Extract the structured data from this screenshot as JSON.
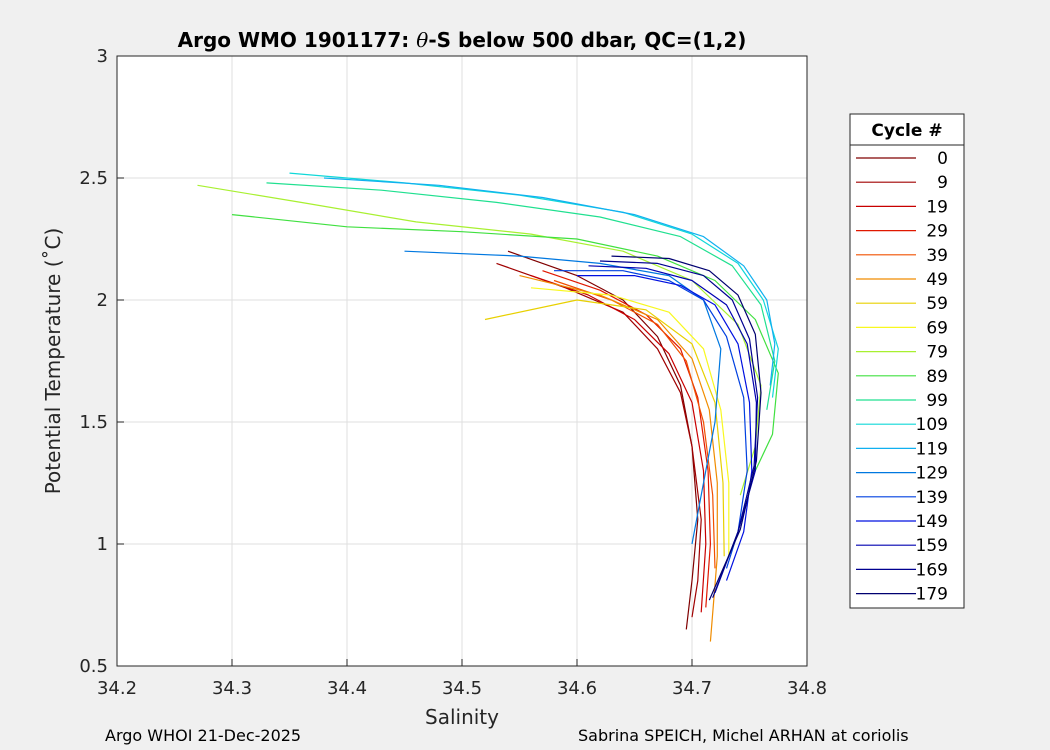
{
  "chart_data": {
    "type": "line",
    "title_prefix": "Argo WMO 1901177: ",
    "title_theta": "θ",
    "title_suffix": "-S below 500 dbar,  QC=(1,2)",
    "xlabel": "Salinity",
    "ylabel": "Potential Temperature (˚C)",
    "xlim": [
      34.2,
      34.8
    ],
    "ylim": [
      0.5,
      3
    ],
    "xticks": [
      34.2,
      34.3,
      34.4,
      34.5,
      34.6,
      34.7,
      34.8
    ],
    "xtick_labels": [
      "34.2",
      "34.3",
      "34.4",
      "34.5",
      "34.6",
      "34.7",
      "34.8"
    ],
    "yticks": [
      0.5,
      1,
      1.5,
      2,
      2.5,
      3
    ],
    "ytick_labels": [
      "0.5",
      "1",
      "1.5",
      "2",
      "2.5",
      "3"
    ],
    "grid": true,
    "legend_title": "Cycle #",
    "legend_placement": "right, outside",
    "legend": [
      {
        "label": "0",
        "color": "#800000"
      },
      {
        "label": "9",
        "color": "#a00000"
      },
      {
        "label": "19",
        "color": "#c80000"
      },
      {
        "label": "29",
        "color": "#e01800"
      },
      {
        "label": "39",
        "color": "#f05000"
      },
      {
        "label": "49",
        "color": "#f08c00"
      },
      {
        "label": "59",
        "color": "#e8d000"
      },
      {
        "label": "69",
        "color": "#f8f820"
      },
      {
        "label": "79",
        "color": "#a8f030"
      },
      {
        "label": "89",
        "color": "#40e040"
      },
      {
        "label": "99",
        "color": "#20e090"
      },
      {
        "label": "109",
        "color": "#10d8d8"
      },
      {
        "label": "119",
        "color": "#10b0f0"
      },
      {
        "label": "129",
        "color": "#0078e0"
      },
      {
        "label": "139",
        "color": "#0040e0"
      },
      {
        "label": "149",
        "color": "#0010e0"
      },
      {
        "label": "159",
        "color": "#0000b0"
      },
      {
        "label": "169",
        "color": "#000090"
      },
      {
        "label": "179",
        "color": "#000070"
      }
    ],
    "series": [
      {
        "name": "0",
        "s": [
          34.54,
          34.6,
          34.64,
          34.67,
          34.69,
          34.7,
          34.705,
          34.7,
          34.695
        ],
        "t": [
          2.2,
          2.1,
          2.0,
          1.85,
          1.65,
          1.4,
          1.1,
          0.85,
          0.65
        ]
      },
      {
        "name": "9",
        "s": [
          34.53,
          34.59,
          34.64,
          34.67,
          34.69,
          34.7,
          34.708,
          34.705,
          34.7
        ],
        "t": [
          2.15,
          2.05,
          1.95,
          1.8,
          1.62,
          1.4,
          1.1,
          0.85,
          0.7
        ]
      },
      {
        "name": "19",
        "s": [
          34.56,
          34.61,
          34.65,
          34.68,
          34.7,
          34.71,
          34.712,
          34.708
        ],
        "t": [
          2.1,
          2.02,
          1.92,
          1.78,
          1.58,
          1.3,
          1.0,
          0.72
        ]
      },
      {
        "name": "29",
        "s": [
          34.57,
          34.62,
          34.66,
          34.69,
          34.705,
          34.714,
          34.716,
          34.712
        ],
        "t": [
          2.12,
          2.04,
          1.94,
          1.8,
          1.6,
          1.3,
          1.0,
          0.74
        ]
      },
      {
        "name": "39",
        "s": [
          34.58,
          34.63,
          34.67,
          34.695,
          34.71,
          34.718,
          34.72
        ],
        "t": [
          2.08,
          2.0,
          1.9,
          1.75,
          1.5,
          1.2,
          0.9
        ]
      },
      {
        "name": "49",
        "s": [
          34.55,
          34.62,
          34.67,
          34.7,
          34.715,
          34.722,
          34.722,
          34.716
        ],
        "t": [
          2.1,
          2.02,
          1.92,
          1.76,
          1.55,
          1.25,
          0.95,
          0.6
        ]
      },
      {
        "name": "59",
        "s": [
          34.52,
          34.6,
          34.66,
          34.7,
          34.72,
          34.727,
          34.728
        ],
        "t": [
          1.92,
          2.0,
          1.96,
          1.82,
          1.58,
          1.25,
          0.95
        ]
      },
      {
        "name": "69",
        "s": [
          34.56,
          34.63,
          34.68,
          34.71,
          34.725,
          34.732,
          34.732
        ],
        "t": [
          2.05,
          2.02,
          1.95,
          1.8,
          1.55,
          1.25,
          0.95
        ]
      },
      {
        "name": "79",
        "s": [
          34.27,
          34.36,
          34.46,
          34.56,
          34.64,
          34.7,
          34.74,
          34.76,
          34.755,
          34.742
        ],
        "t": [
          2.47,
          2.4,
          2.32,
          2.27,
          2.2,
          2.08,
          1.9,
          1.65,
          1.4,
          1.2
        ]
      },
      {
        "name": "89",
        "s": [
          34.3,
          34.4,
          34.5,
          34.6,
          34.67,
          34.72,
          34.755,
          34.775,
          34.77,
          34.755
        ],
        "t": [
          2.35,
          2.3,
          2.28,
          2.25,
          2.18,
          2.08,
          1.92,
          1.7,
          1.45,
          1.3
        ]
      },
      {
        "name": "99",
        "s": [
          34.33,
          34.43,
          34.53,
          34.62,
          34.69,
          34.735,
          34.76,
          34.772,
          34.765
        ],
        "t": [
          2.48,
          2.45,
          2.4,
          2.34,
          2.26,
          2.14,
          1.98,
          1.75,
          1.55
        ]
      },
      {
        "name": "109",
        "s": [
          34.35,
          34.45,
          34.55,
          34.64,
          34.7,
          34.74,
          34.762,
          34.775,
          34.77
        ],
        "t": [
          2.52,
          2.48,
          2.43,
          2.36,
          2.27,
          2.15,
          2.0,
          1.8,
          1.6
        ]
      },
      {
        "name": "119",
        "s": [
          34.38,
          34.48,
          34.57,
          34.65,
          34.71,
          34.745,
          34.765,
          34.772,
          34.768
        ],
        "t": [
          2.5,
          2.47,
          2.42,
          2.35,
          2.26,
          2.14,
          2.0,
          1.82,
          1.65
        ]
      },
      {
        "name": "129",
        "s": [
          34.45,
          34.55,
          34.62,
          34.68,
          34.71,
          34.725,
          34.72,
          34.7
        ],
        "t": [
          2.2,
          2.18,
          2.15,
          2.1,
          2.0,
          1.8,
          1.5,
          1.0
        ]
      },
      {
        "name": "139",
        "s": [
          34.58,
          34.64,
          34.68,
          34.71,
          34.73,
          34.745,
          34.748,
          34.74,
          34.73
        ],
        "t": [
          2.12,
          2.12,
          2.08,
          2.0,
          1.85,
          1.6,
          1.3,
          1.05,
          0.9
        ]
      },
      {
        "name": "149",
        "s": [
          34.6,
          34.65,
          34.69,
          34.72,
          34.74,
          34.75,
          34.752,
          34.745,
          34.73
        ],
        "t": [
          2.1,
          2.1,
          2.06,
          1.98,
          1.82,
          1.58,
          1.3,
          1.05,
          0.85
        ]
      },
      {
        "name": "159",
        "s": [
          34.61,
          34.66,
          34.7,
          34.73,
          34.748,
          34.756,
          34.755,
          34.74,
          34.72
        ],
        "t": [
          2.14,
          2.13,
          2.08,
          1.98,
          1.82,
          1.58,
          1.3,
          1.05,
          0.8
        ]
      },
      {
        "name": "169",
        "s": [
          34.62,
          34.67,
          34.71,
          34.735,
          34.75,
          34.757,
          34.754,
          34.74,
          34.718
        ],
        "t": [
          2.16,
          2.15,
          2.1,
          2.0,
          1.84,
          1.6,
          1.32,
          1.05,
          0.78
        ]
      },
      {
        "name": "179",
        "s": [
          34.63,
          34.68,
          34.715,
          34.74,
          34.755,
          34.76,
          34.756,
          34.742,
          34.715
        ],
        "t": [
          2.18,
          2.17,
          2.12,
          2.02,
          1.86,
          1.62,
          1.34,
          1.06,
          0.77
        ]
      }
    ]
  },
  "footer": {
    "left": "Argo WHOI 21-Dec-2025",
    "right": "Sabrina SPEICH, Michel ARHAN at coriolis"
  }
}
